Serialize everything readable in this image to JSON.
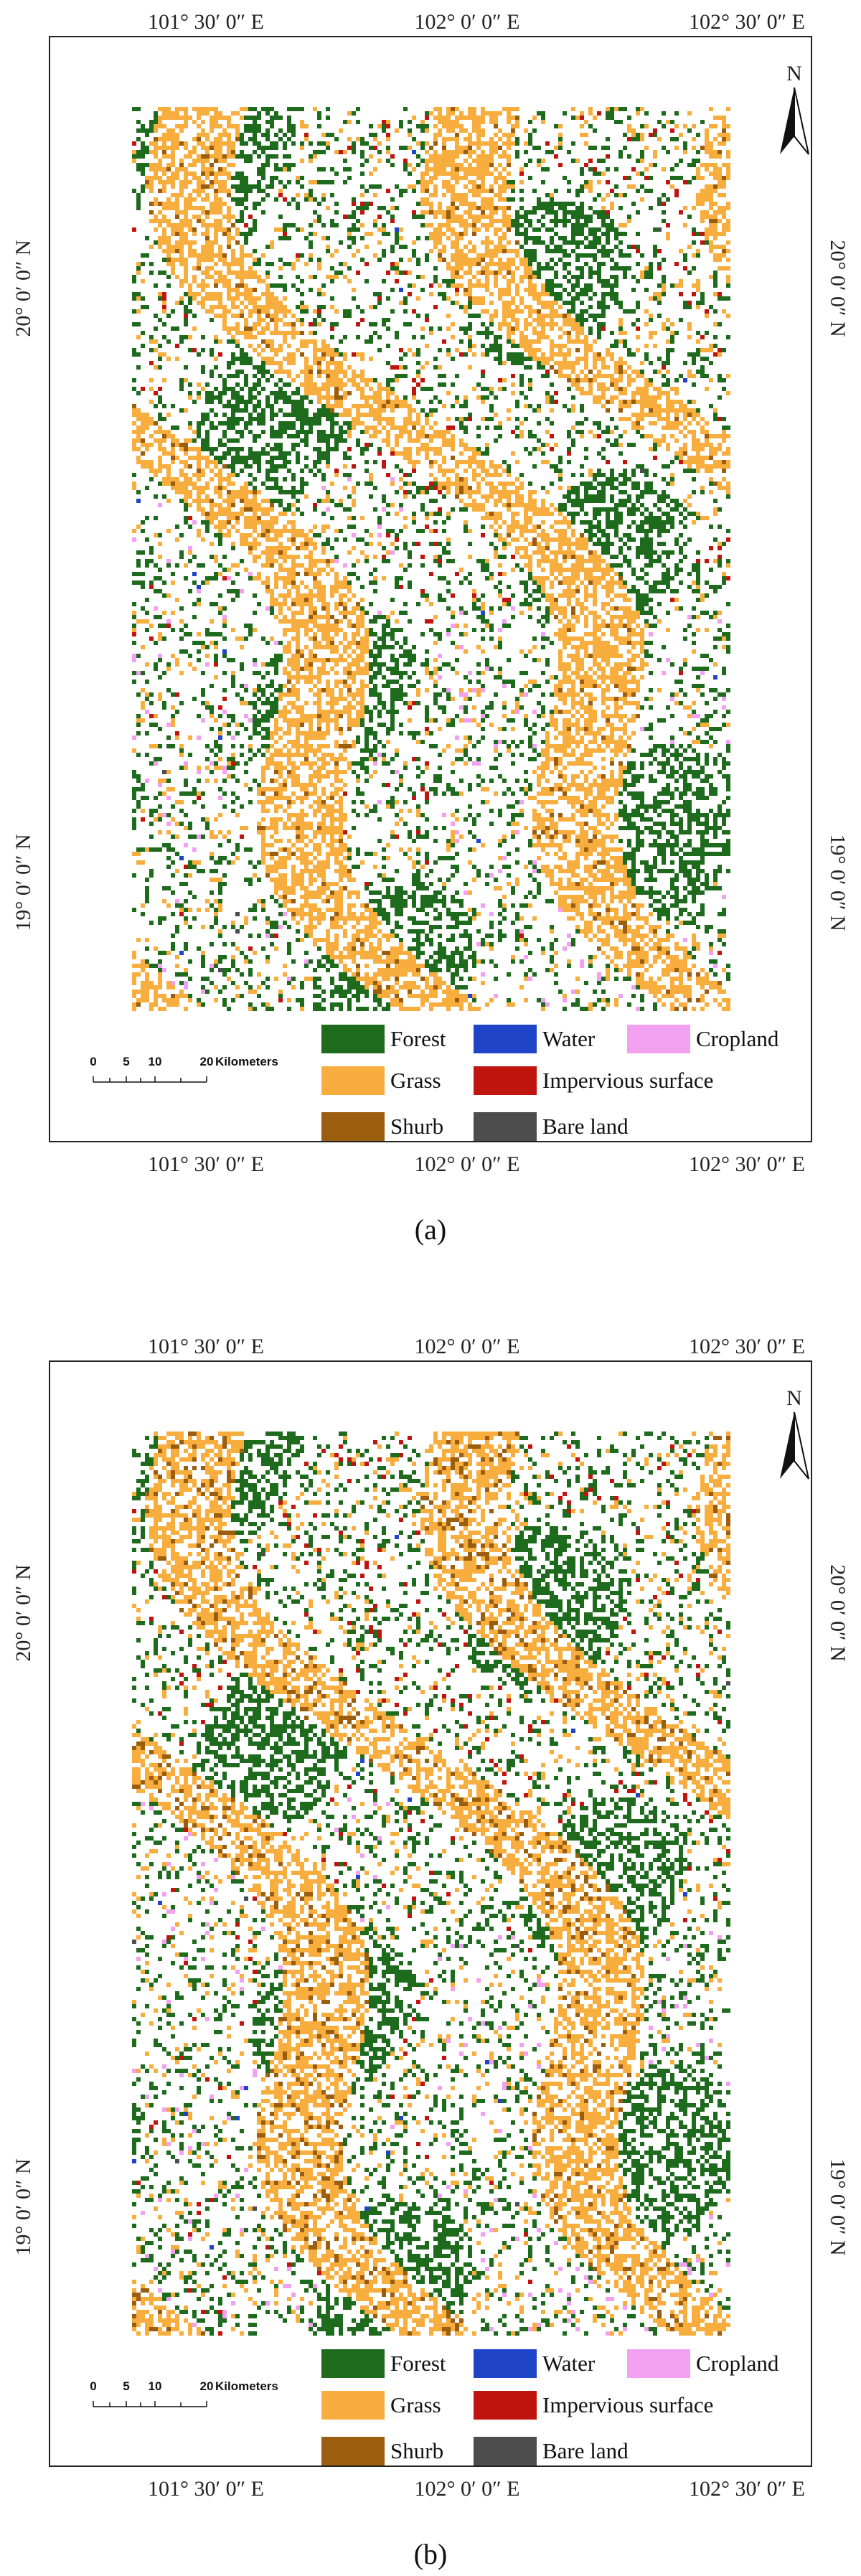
{
  "panels": [
    {
      "caption": "(a)",
      "north": "N",
      "top_labels": [
        "101° 30′ 0″ E",
        "102° 0′ 0″ E",
        "102° 30′ 0″ E"
      ],
      "bottom_labels": [
        "101° 30′ 0″ E",
        "102° 0′ 0″ E",
        "102° 30′ 0″ E"
      ],
      "left_labels": [
        "20° 0′ 0″ N",
        "19° 0′ 0″ N"
      ],
      "right_labels": [
        "20° 0′ 0″ N",
        "19° 0′ 0″ N"
      ],
      "legend": [
        {
          "label": "Forest",
          "color": "#1e6b1e"
        },
        {
          "label": "Grass",
          "color": "#f7ae3e"
        },
        {
          "label": "Shurb",
          "color": "#9b5d0e"
        },
        {
          "label": "Water",
          "color": "#1f44c8"
        },
        {
          "label": "Impervious surface",
          "color": "#c0150f"
        },
        {
          "label": "Bare land",
          "color": "#4d4d4d"
        },
        {
          "label": "Cropland",
          "color": "#f2a0f0"
        }
      ],
      "scale_bar": {
        "ticks": [
          "0",
          "5",
          "10",
          "20"
        ],
        "unit": "Kilometers"
      }
    },
    {
      "caption": "(b)",
      "north": "N",
      "top_labels": [
        "101° 30′ 0″ E",
        "102° 0′ 0″ E",
        "102° 30′ 0″ E"
      ],
      "bottom_labels": [
        "101° 30′ 0″ E",
        "102° 0′ 0″ E",
        "102° 30′ 0″ E"
      ],
      "left_labels": [
        "20° 0′ 0″ N",
        "19° 0′ 0″ N"
      ],
      "right_labels": [
        "20° 0′ 0″ N",
        "19° 0′ 0″ N"
      ],
      "legend": [
        {
          "label": "Forest",
          "color": "#1e6b1e"
        },
        {
          "label": "Grass",
          "color": "#f7ae3e"
        },
        {
          "label": "Shurb",
          "color": "#9b5d0e"
        },
        {
          "label": "Water",
          "color": "#1f44c8"
        },
        {
          "label": "Impervious surface",
          "color": "#c0150f"
        },
        {
          "label": "Bare land",
          "color": "#4d4d4d"
        },
        {
          "label": "Cropland",
          "color": "#f2a0f0"
        }
      ],
      "scale_bar": {
        "ticks": [
          "0",
          "5",
          "10",
          "20"
        ],
        "unit": "Kilometers"
      }
    }
  ]
}
